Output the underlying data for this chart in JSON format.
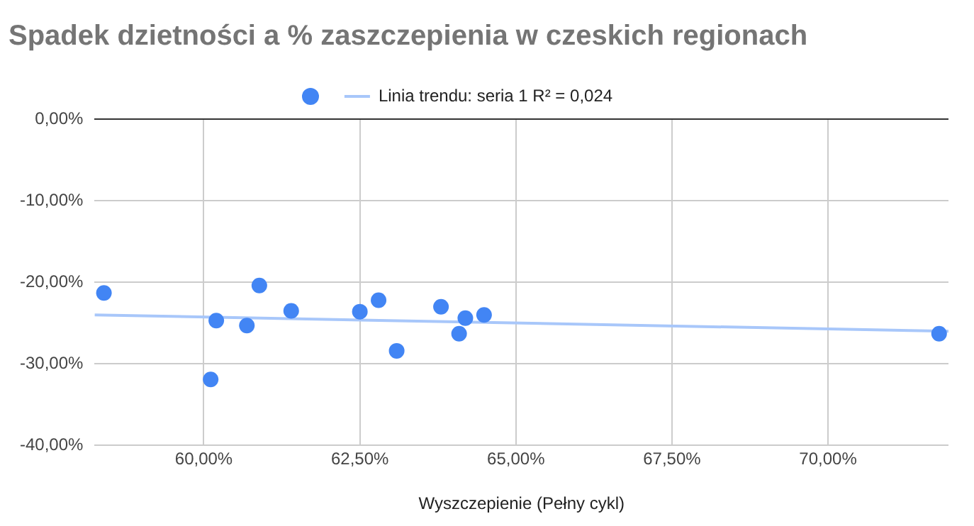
{
  "chart_data": {
    "type": "scatter",
    "title": "Spadek dzietności a % zaszczepienia w czeskich regionach",
    "xlabel": "Wyszczepienie (Pełny cykl)",
    "series": [
      {
        "type": "scatter",
        "marker": "circle",
        "color": "#4285f4",
        "x": [
          58.4,
          60.2,
          60.11,
          60.69,
          60.89,
          61.4,
          62.5,
          62.8,
          63.09,
          63.8,
          64.09,
          64.19,
          64.49,
          71.78
        ],
        "values": [
          -21.3,
          -24.7,
          -31.9,
          -25.3,
          -20.4,
          -23.5,
          -23.6,
          -22.2,
          -28.4,
          -23.0,
          -26.3,
          -24.4,
          -24.0,
          -26.3
        ]
      },
      {
        "type": "line",
        "marker": "none",
        "name": "Linia trendu: seria 1 R² = 0,024",
        "color": "#a8c7fa",
        "x": [
          58.25,
          71.93
        ],
        "values": [
          -24.0,
          -26.0
        ]
      }
    ],
    "xlim": [
      58.25,
      71.93
    ],
    "xticks": [
      {
        "value": 60,
        "label": "60,00%"
      },
      {
        "value": 62.5,
        "label": "62,50%"
      },
      {
        "value": 65,
        "label": "65,00%"
      },
      {
        "value": 67.5,
        "label": "67,50%"
      },
      {
        "value": 70,
        "label": "70,00%"
      }
    ],
    "ylim": [
      -40,
      0
    ],
    "yticks": [
      {
        "value": -40,
        "label": "-40,00%"
      },
      {
        "value": -30,
        "label": "-30,00%"
      },
      {
        "value": -20,
        "label": "-20,00%"
      },
      {
        "value": -10,
        "label": "-10,00%"
      },
      {
        "value": 0,
        "label": "0,00%"
      }
    ],
    "grid": true,
    "legend": "top"
  }
}
